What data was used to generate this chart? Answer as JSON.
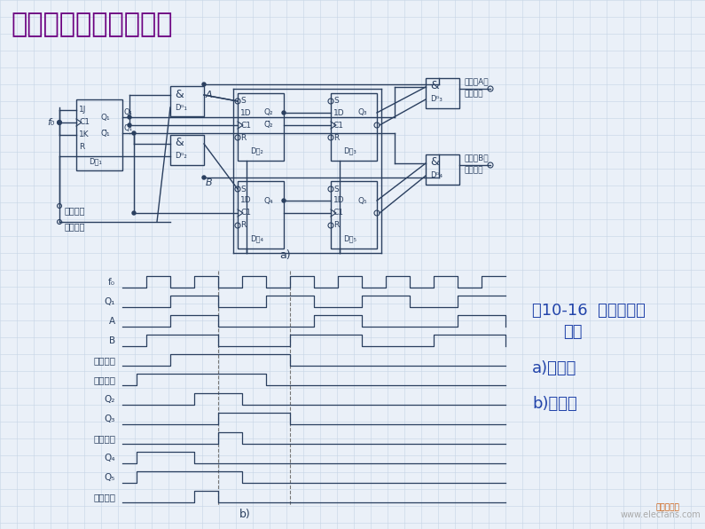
{
  "title": "（二）脉冲不重合电路",
  "title_color": "#6B0080",
  "title_fontsize": 22,
  "bg_color": "#EAF0F8",
  "grid_color": "#C5D5E5",
  "line_color": "#2A3F5F",
  "caption_line1": "图10-16  脉冲不重合",
  "caption_line2": "电路",
  "caption_a": "a)电路图",
  "caption_b": "b)波形图",
  "caption_color": "#2244AA",
  "caption_fontsize": 13,
  "label_a": "a)",
  "label_b": "b)",
  "waveform_labels": [
    "f₀",
    "Q₁",
    "A",
    "B",
    "指令脉冲",
    "反馈脉冲",
    "Q₂",
    "Q₃",
    "指令输出",
    "Q₄",
    "Q₅",
    "反馈输出"
  ],
  "watermark": "www.elecfans.com"
}
